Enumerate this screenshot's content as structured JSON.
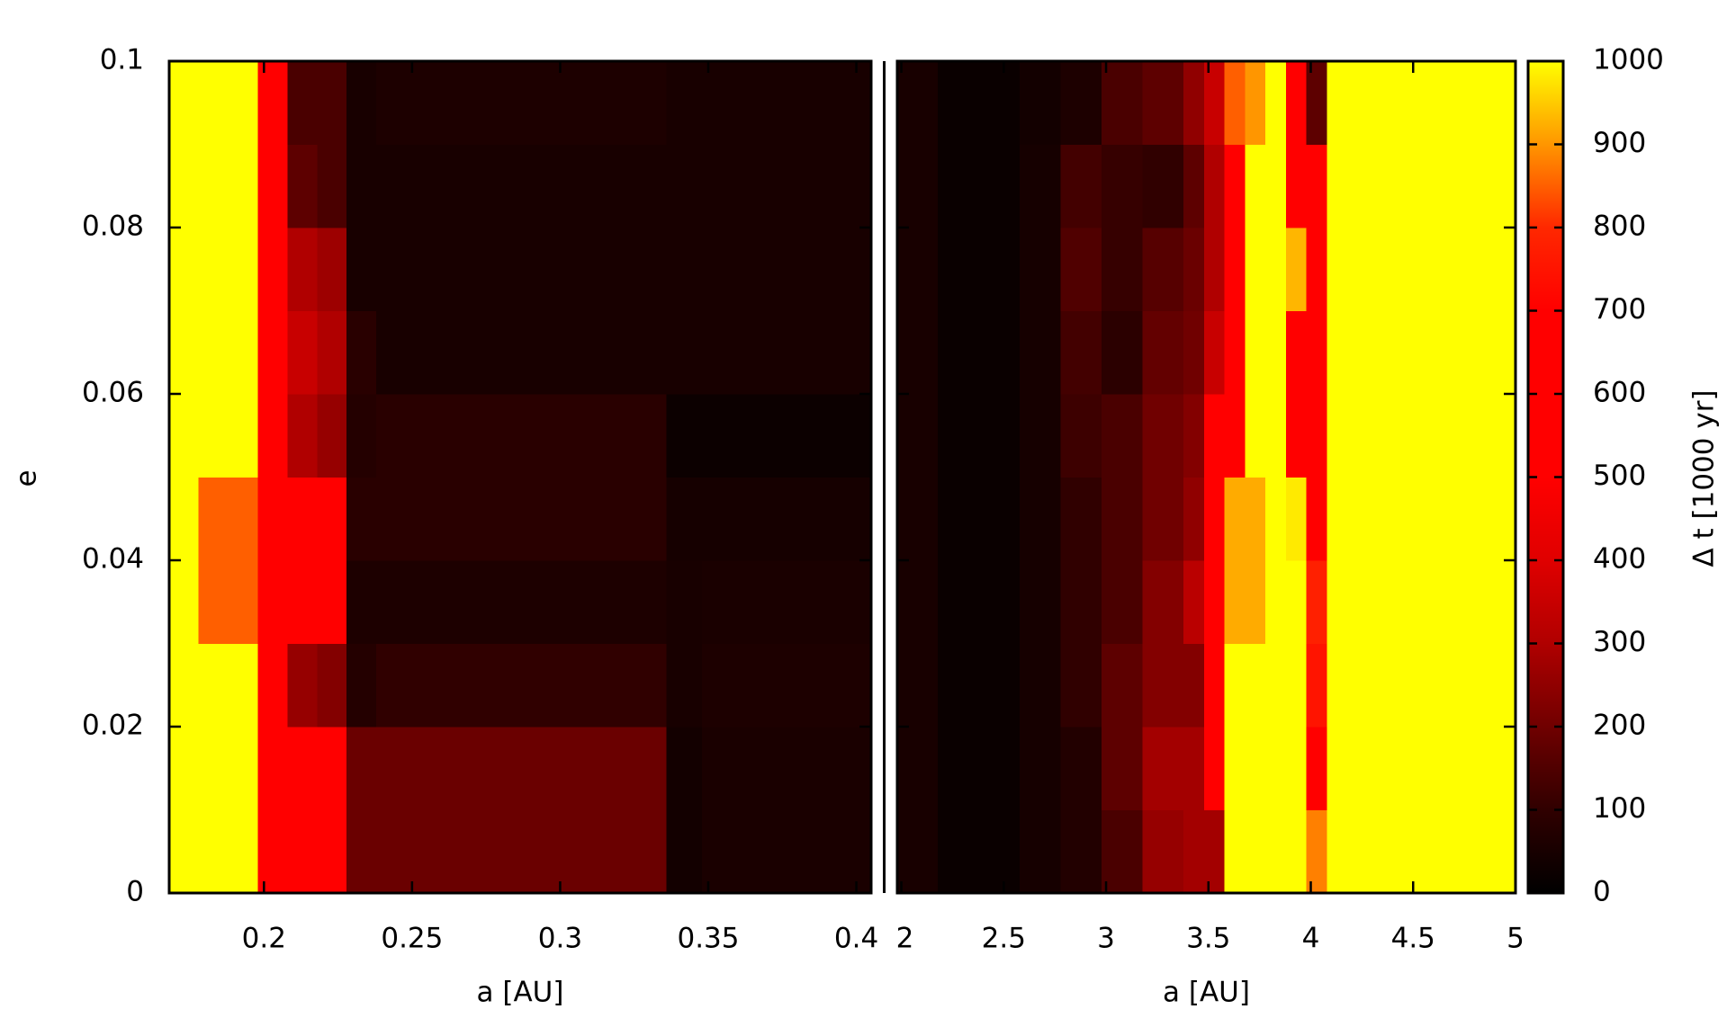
{
  "chart_data": {
    "type": "heatmap",
    "ylabel": "e",
    "ylim": [
      0,
      0.1
    ],
    "yticks": [
      0,
      0.02,
      0.04,
      0.06,
      0.08,
      0.1
    ],
    "y_edges": [
      0,
      0.01,
      0.02,
      0.03,
      0.04,
      0.05,
      0.06,
      0.07,
      0.08,
      0.09,
      0.1
    ],
    "zlim": [
      0,
      1000
    ],
    "zticks": [
      0,
      100,
      200,
      300,
      400,
      500,
      600,
      700,
      800,
      900,
      1000
    ],
    "colorbar_label": "Δ t [1000 yr]",
    "panels": [
      {
        "xlabel": "a [AU]",
        "xlim": [
          0.168,
          0.405
        ],
        "xticks": [
          0.2,
          0.25,
          0.3,
          0.35,
          0.4
        ],
        "x_edges": [
          0.168,
          0.178,
          0.198,
          0.208,
          0.218,
          0.228,
          0.238,
          0.336,
          0.348,
          0.405
        ],
        "z": [
          [
            1000,
            1000,
            650,
            650,
            650,
            190,
            190,
            40,
            55
          ],
          [
            1000,
            1000,
            650,
            650,
            650,
            190,
            190,
            40,
            55
          ],
          [
            1000,
            1000,
            650,
            260,
            230,
            75,
            100,
            50,
            60
          ],
          [
            1000,
            850,
            650,
            580,
            580,
            60,
            60,
            50,
            55
          ],
          [
            1000,
            850,
            650,
            580,
            580,
            85,
            85,
            45,
            45
          ],
          [
            1000,
            1000,
            650,
            300,
            260,
            75,
            85,
            25,
            25
          ],
          [
            1000,
            1000,
            650,
            350,
            300,
            85,
            50,
            50,
            50
          ],
          [
            1000,
            1000,
            650,
            300,
            270,
            50,
            50,
            50,
            50
          ],
          [
            1000,
            1000,
            650,
            170,
            140,
            50,
            50,
            50,
            50
          ],
          [
            1000,
            1000,
            650,
            140,
            140,
            50,
            60,
            50,
            50
          ]
        ]
      },
      {
        "xlabel": "a [AU]",
        "xlim": [
          1.98,
          5
        ],
        "xticks": [
          2,
          2.5,
          3,
          3.5,
          4,
          4.5,
          5
        ],
        "x_edges": [
          1.98,
          2.18,
          2.58,
          2.78,
          2.98,
          3.18,
          3.38,
          3.48,
          3.58,
          3.68,
          3.78,
          3.88,
          3.98,
          4.08,
          5
        ],
        "z": [
          [
            50,
            20,
            45,
            70,
            140,
            260,
            280,
            280,
            1000,
            1000,
            1000,
            1000,
            880,
            1000
          ],
          [
            50,
            20,
            45,
            70,
            170,
            280,
            280,
            650,
            1000,
            1000,
            1000,
            1000,
            700,
            1000
          ],
          [
            50,
            20,
            45,
            100,
            170,
            230,
            230,
            650,
            1000,
            1000,
            1000,
            1000,
            750,
            1000
          ],
          [
            50,
            20,
            45,
            100,
            140,
            230,
            320,
            650,
            920,
            920,
            1000,
            1000,
            780,
            1000
          ],
          [
            50,
            20,
            45,
            100,
            140,
            200,
            250,
            650,
            920,
            920,
            1000,
            980,
            650,
            1000
          ],
          [
            50,
            20,
            45,
            120,
            140,
            200,
            230,
            650,
            650,
            1000,
            1000,
            650,
            650,
            1000
          ],
          [
            50,
            20,
            45,
            130,
            90,
            180,
            200,
            350,
            650,
            1000,
            1000,
            650,
            650,
            1000
          ],
          [
            50,
            20,
            45,
            150,
            110,
            160,
            190,
            300,
            650,
            1000,
            1000,
            930,
            650,
            1000
          ],
          [
            50,
            20,
            45,
            130,
            110,
            100,
            170,
            300,
            650,
            1000,
            1000,
            650,
            650,
            1000
          ],
          [
            50,
            20,
            40,
            60,
            140,
            170,
            250,
            350,
            850,
            900,
            1000,
            650,
            170,
            1000
          ]
        ]
      }
    ]
  }
}
